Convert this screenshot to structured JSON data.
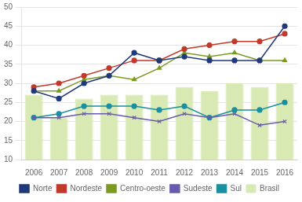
{
  "chart_data": {
    "type": "bar",
    "categories": [
      "2006",
      "2007",
      "2008",
      "2009",
      "2010",
      "2011",
      "2012",
      "2013",
      "2014",
      "2015",
      "2016"
    ],
    "series": [
      {
        "name": "Brasil",
        "type": "bar",
        "color": "#d8e9b4",
        "values": [
          27,
          21,
          26,
          27,
          27,
          27,
          29,
          28,
          30,
          29,
          30
        ]
      },
      {
        "name": "Norte",
        "type": "line",
        "color": "#1f3a7a",
        "marker": "circle",
        "values": [
          28,
          26,
          30,
          32,
          38,
          36,
          37,
          36,
          36,
          36,
          45
        ]
      },
      {
        "name": "Nordeste",
        "type": "line",
        "color": "#c0392b",
        "marker": "circle",
        "values": [
          29,
          30,
          32,
          34,
          36,
          36,
          39,
          40,
          41,
          41,
          43
        ]
      },
      {
        "name": "Centro-oeste",
        "type": "line",
        "color": "#7a9a20",
        "marker": "triangle",
        "values": [
          28,
          28,
          31,
          32,
          31,
          34,
          38,
          37,
          38,
          36,
          36
        ]
      },
      {
        "name": "Sudeste",
        "type": "line",
        "color": "#6a5aad",
        "marker": "x",
        "values": [
          21,
          21,
          22,
          22,
          21,
          20,
          22,
          21,
          22,
          19,
          20
        ]
      },
      {
        "name": "Sul",
        "type": "line",
        "color": "#1a8fa0",
        "marker": "circle",
        "values": [
          21,
          22,
          24,
          24,
          24,
          23,
          24,
          21,
          23,
          23,
          25
        ]
      }
    ],
    "ylim": [
      10,
      50
    ],
    "yticks": [
      10,
      15,
      20,
      25,
      30,
      35,
      40,
      45,
      50
    ],
    "grid": true,
    "legend": "bottom"
  }
}
